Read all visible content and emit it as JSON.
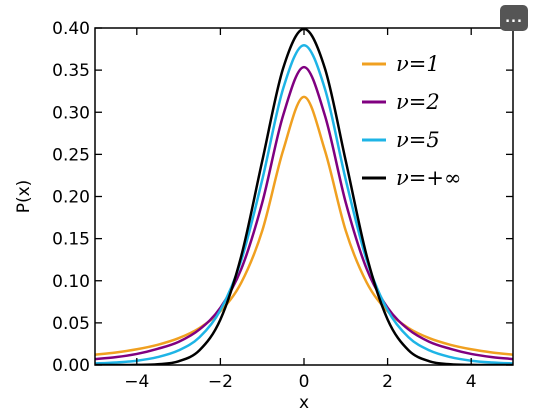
{
  "toolbar": {
    "more_label": "..."
  },
  "chart_data": {
    "type": "line",
    "title": "",
    "xlabel": "x",
    "ylabel": "P(x)",
    "xlim": [
      -5,
      5
    ],
    "ylim": [
      0.0,
      0.4
    ],
    "x_ticks": [
      -4,
      -2,
      0,
      2,
      4
    ],
    "x_tick_labels": [
      "−4",
      "−2",
      "0",
      "2",
      "4"
    ],
    "y_ticks": [
      0.0,
      0.05,
      0.1,
      0.15,
      0.2,
      0.25,
      0.3,
      0.35,
      0.4
    ],
    "y_tick_labels": [
      "0.00",
      "0.05",
      "0.10",
      "0.15",
      "0.20",
      "0.25",
      "0.30",
      "0.35",
      "0.40"
    ],
    "grid": false,
    "legend_position": "top-right",
    "x": [
      -5,
      -4.5,
      -4,
      -3.5,
      -3,
      -2.5,
      -2,
      -1.5,
      -1,
      -0.5,
      0,
      0.5,
      1,
      1.5,
      2,
      2.5,
      3,
      3.5,
      4,
      4.5,
      5
    ],
    "series": [
      {
        "name": "ν=1",
        "color": "#f0a020",
        "values": [
          0.0122,
          0.0149,
          0.0187,
          0.024,
          0.0318,
          0.0439,
          0.0637,
          0.0979,
          0.1592,
          0.2546,
          0.3183,
          0.2546,
          0.1592,
          0.0979,
          0.0637,
          0.0439,
          0.0318,
          0.024,
          0.0187,
          0.0149,
          0.0122
        ]
      },
      {
        "name": "ν=2",
        "color": "#800080",
        "values": [
          0.0071,
          0.0094,
          0.0131,
          0.0192,
          0.0275,
          0.0422,
          0.068,
          0.114,
          0.1925,
          0.2962,
          0.3536,
          0.2962,
          0.1925,
          0.114,
          0.068,
          0.0422,
          0.0275,
          0.0192,
          0.0131,
          0.0094,
          0.0071
        ]
      },
      {
        "name": "ν=5",
        "color": "#1eb4e6",
        "values": [
          0.0018,
          0.003,
          0.0051,
          0.0094,
          0.0173,
          0.0329,
          0.0651,
          0.1245,
          0.2197,
          0.3279,
          0.3796,
          0.3279,
          0.2197,
          0.1245,
          0.0651,
          0.0329,
          0.0173,
          0.0094,
          0.0051,
          0.003,
          0.0018
        ]
      },
      {
        "name": "ν=+∞",
        "color": "#000000",
        "values": [
          1.5e-06,
          1.6e-05,
          0.00013,
          0.00087,
          0.0044,
          0.0175,
          0.054,
          0.1295,
          0.242,
          0.3521,
          0.3989,
          0.3521,
          0.242,
          0.1295,
          0.054,
          0.0175,
          0.0044,
          0.00087,
          0.00013,
          1.6e-05,
          1.5e-06
        ]
      }
    ]
  }
}
